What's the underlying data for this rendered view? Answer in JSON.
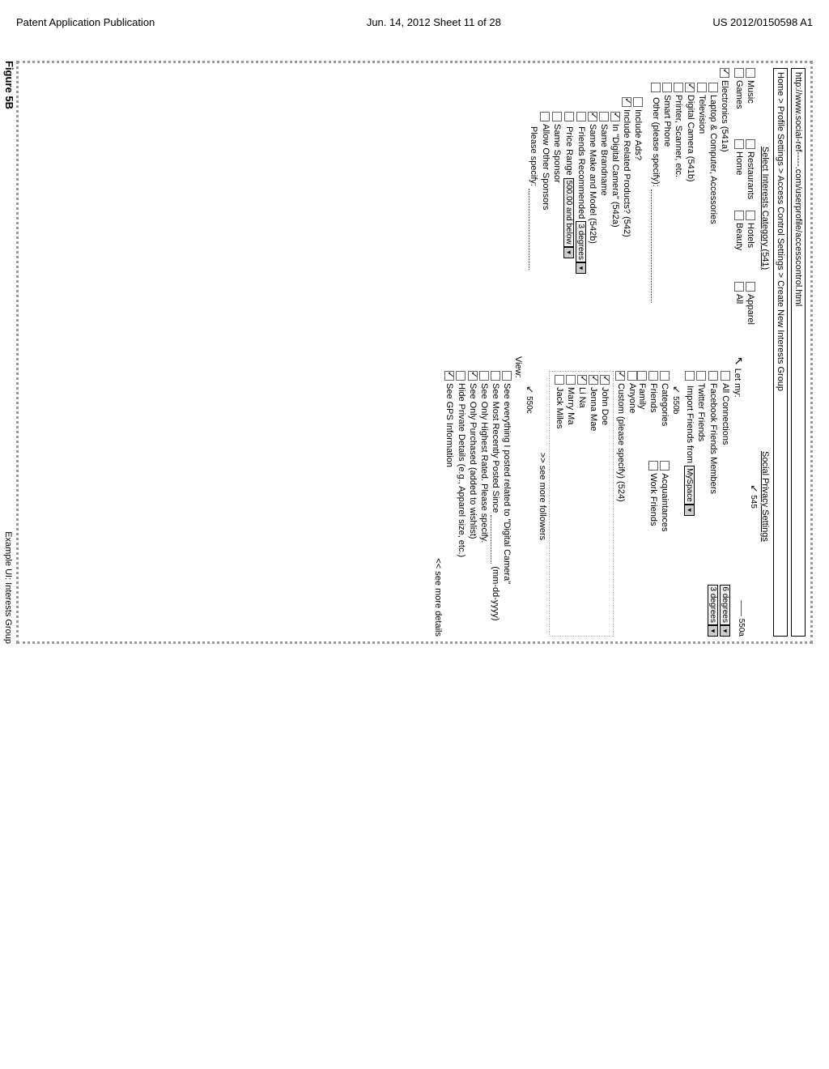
{
  "header": {
    "left": "Patent Application Publication",
    "center": "Jun. 14, 2012  Sheet 11 of 28",
    "right": "US 2012/0150598 A1"
  },
  "url": "http://www.social-ref-----.com/userprofile/accesscontrol.html",
  "breadcrumb": "Home > Profile Settings > Access Control Settings > Create New Interests Group",
  "left": {
    "header": "Select Interests Category (541)",
    "cats": [
      {
        "label": "Music",
        "checked": false
      },
      {
        "label": "Restaurants",
        "checked": false
      },
      {
        "label": "Hotels",
        "checked": false
      },
      {
        "label": "Apparel",
        "checked": false
      },
      {
        "label": "Games",
        "checked": false
      },
      {
        "label": "Home",
        "checked": false
      },
      {
        "label": "Beauty",
        "checked": false
      },
      {
        "label": "All",
        "checked": false
      }
    ],
    "items": [
      {
        "label": "Electronics (541a)",
        "checked": true,
        "indent": 0
      },
      {
        "label": "Laptop & Computer, Accessories",
        "checked": false,
        "indent": 1
      },
      {
        "label": "Television",
        "checked": false,
        "indent": 1
      },
      {
        "label": "Digital Camera (541b)",
        "checked": true,
        "indent": 1
      },
      {
        "label": "Printer, Scanner, etc.",
        "checked": false,
        "indent": 1
      },
      {
        "label": "Smart Phone",
        "checked": false,
        "indent": 1
      }
    ],
    "other_label": "Other (please specify):",
    "ads_section": {
      "include_ads": {
        "label": "Include Ads?",
        "checked": false
      },
      "include_related": {
        "label": "Include Related Products? (542)",
        "checked": true
      },
      "in_digital": {
        "label": "In \"Digital Camera\" (542a)",
        "checked": true
      },
      "same_brand": {
        "label": "Same Brandname",
        "checked": false
      },
      "same_make": {
        "label": "Same Make and Model (542b)",
        "checked": true
      },
      "friends_rec": {
        "label": "Friends Recommended",
        "checked": false,
        "dd": "3 degrees"
      },
      "price_range": {
        "label": "Price Range",
        "checked": false,
        "dd": "500.00 and below"
      },
      "same_sponsor": {
        "label": "Same Sponsor",
        "checked": false
      },
      "allow_other": {
        "label": "Allow Other Sponsors",
        "checked": false
      },
      "please_specify": "Please specify:"
    }
  },
  "right": {
    "header": "Social Privacy Settings",
    "ref545": "545",
    "letmy": "Let my:",
    "ref550a": "550a",
    "all_conn": {
      "label": "All Connections",
      "checked": false
    },
    "dd6": "6 degrees",
    "fb": {
      "label": "Facebook Friends Members",
      "checked": false
    },
    "dd3": "3 degrees",
    "twitter": {
      "label": "Twitter Friends",
      "checked": false
    },
    "import": {
      "label": "Import Friends from",
      "checked": false,
      "dd": "MySpace"
    },
    "ref550b": "550b",
    "view_rows": [
      [
        {
          "label": "Categories",
          "checked": false
        },
        {
          "label": "Acquaintances",
          "checked": false
        }
      ],
      [
        {
          "label": "Friends",
          "checked": false
        },
        {
          "label": "Work Friends",
          "checked": false
        }
      ],
      [
        {
          "label": "Family",
          "checked": false
        }
      ]
    ],
    "anyone": {
      "label": "Anyone",
      "checked": false
    },
    "custom": {
      "label": "Custom (please specify) (524)",
      "checked": true
    },
    "people": [
      {
        "label": "John Doe",
        "checked": true
      },
      {
        "label": "Jenna Mae",
        "checked": true
      },
      {
        "label": "Li Na",
        "checked": true
      },
      {
        "label": "Marry Ma",
        "checked": false
      },
      {
        "label": "Jack Miles",
        "checked": false
      }
    ],
    "see_more_followers": ">> see more followers",
    "ref550c": "550c",
    "view_label": "View:",
    "view_items": [
      {
        "label": "See everything I posted related to \"Digital Camera\"",
        "checked": false
      },
      {
        "label_pre": "See Most Recently Posted Since",
        "label_post": "(mm-dd-yyyy)",
        "checked": false,
        "has_blank": true
      },
      {
        "label": "See Only Highest Rated.  Please specify.",
        "checked": false
      },
      {
        "label": "See Only Purchased (added to wishlist)",
        "checked": true
      },
      {
        "label": "Hide Private Details (e.g., Apparel size, etc.)",
        "checked": false
      },
      {
        "label": "See GPS Information",
        "checked": true
      }
    ],
    "see_more_details": "<< see more details"
  },
  "caption": "Example UI: Interests Group",
  "figure": "Figure 5B"
}
